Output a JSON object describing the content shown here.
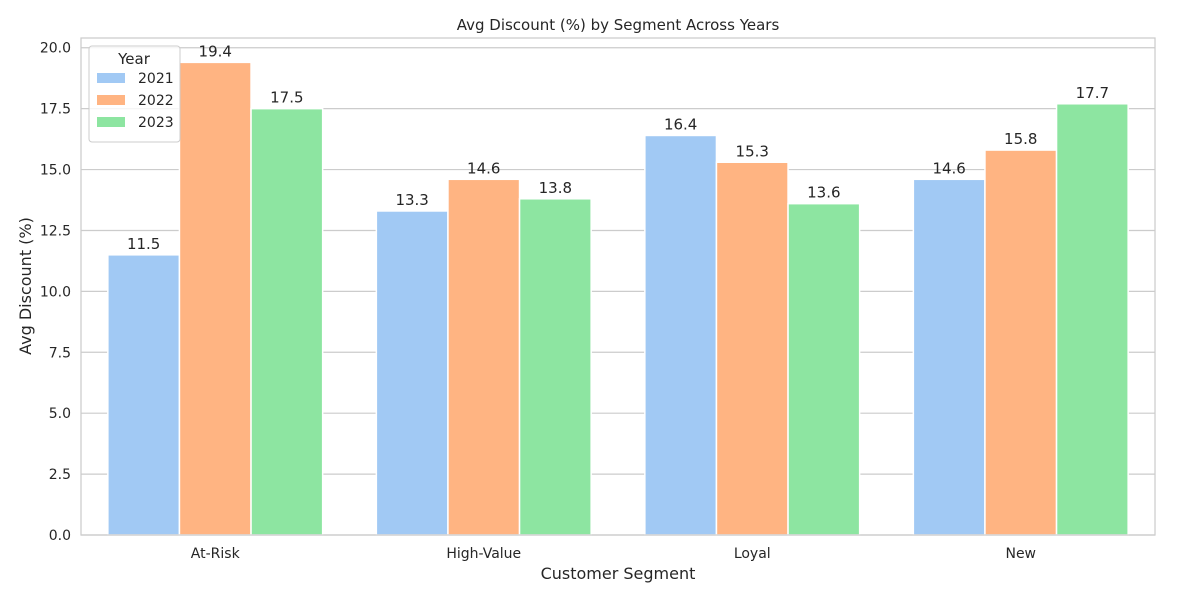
{
  "chart_data": {
    "type": "bar",
    "title": "Avg Discount (%) by Segment Across Years",
    "xlabel": "Customer Segment",
    "ylabel": "Avg Discount (%)",
    "categories": [
      "At-Risk",
      "High-Value",
      "Loyal",
      "New"
    ],
    "series": [
      {
        "name": "2021",
        "values": [
          11.5,
          13.3,
          16.4,
          14.6
        ],
        "color": "#a1c9f4"
      },
      {
        "name": "2022",
        "values": [
          19.4,
          14.6,
          15.3,
          15.8
        ],
        "color": "#ffb482"
      },
      {
        "name": "2023",
        "values": [
          17.5,
          13.8,
          13.6,
          17.7
        ],
        "color": "#8de5a1"
      }
    ],
    "data_labels": [
      [
        "11.5",
        "19.4",
        "17.5"
      ],
      [
        "13.3",
        "14.6",
        "13.8"
      ],
      [
        "16.4",
        "15.3",
        "13.6"
      ],
      [
        "14.6",
        "15.8",
        "17.7"
      ]
    ],
    "ylim": [
      0,
      20.4
    ],
    "yticks": [
      0.0,
      2.5,
      5.0,
      7.5,
      10.0,
      12.5,
      15.0,
      17.5,
      20.0
    ],
    "ytick_labels": [
      "0.0",
      "2.5",
      "5.0",
      "7.5",
      "10.0",
      "12.5",
      "15.0",
      "17.5",
      "20.0"
    ],
    "legend": {
      "title": "Year",
      "placement": "top-left"
    },
    "grid": "horizontal"
  }
}
